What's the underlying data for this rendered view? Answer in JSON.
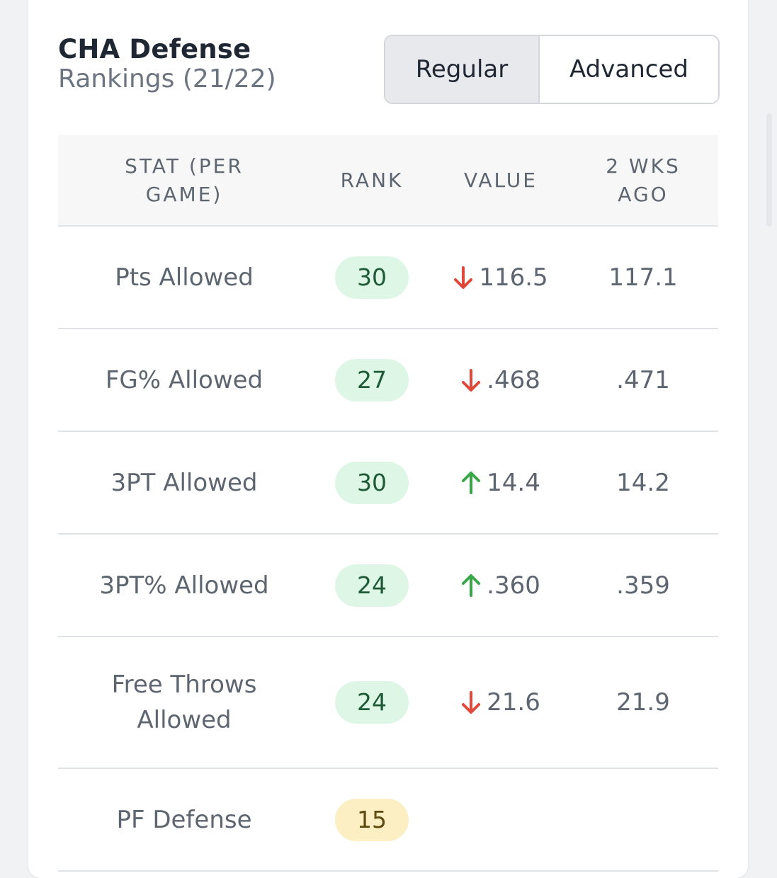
{
  "header": {
    "title": "CHA Defense",
    "subtitle": "Rankings (21/22)"
  },
  "toggle": {
    "options": [
      "Regular",
      "Advanced"
    ],
    "selected": "Regular"
  },
  "table": {
    "columns": [
      "STAT (PER GAME)",
      "RANK",
      "VALUE",
      "2 WKS AGO"
    ],
    "rows": [
      {
        "stat": "Pts Allowed",
        "rank": "30",
        "rank_level": "green",
        "trend": "down",
        "value": "116.5",
        "two_weeks_ago": "117.1"
      },
      {
        "stat": "FG% Allowed",
        "rank": "27",
        "rank_level": "green",
        "trend": "down",
        "value": ".468",
        "two_weeks_ago": ".471"
      },
      {
        "stat": "3PT Allowed",
        "rank": "30",
        "rank_level": "green",
        "trend": "up",
        "value": "14.4",
        "two_weeks_ago": "14.2"
      },
      {
        "stat": "3PT% Allowed",
        "rank": "24",
        "rank_level": "green",
        "trend": "up",
        "value": ".360",
        "two_weeks_ago": ".359"
      },
      {
        "stat": "Free Throws Allowed",
        "rank": "24",
        "rank_level": "green",
        "trend": "down",
        "value": "21.6",
        "two_weeks_ago": "21.9"
      },
      {
        "stat": "PF Defense",
        "rank": "15",
        "rank_level": "yellow",
        "trend": "",
        "value": "",
        "two_weeks_ago": ""
      }
    ]
  },
  "colors": {
    "trend_down": "#e0483a",
    "trend_up": "#3aa64a",
    "rank_green_bg": "#ddf6e6",
    "rank_yellow_bg": "#fcefc4"
  }
}
